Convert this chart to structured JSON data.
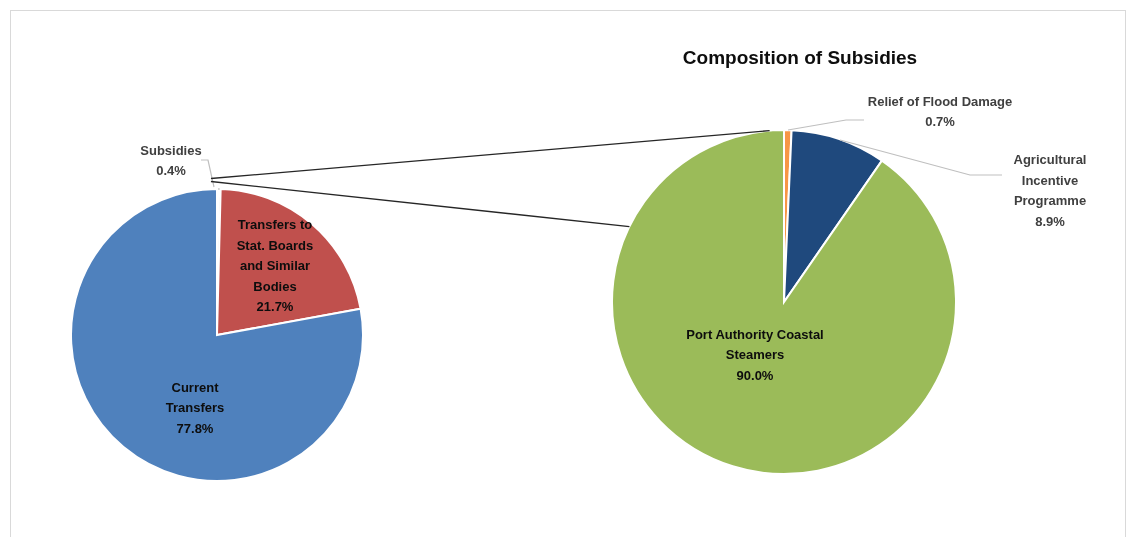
{
  "chart_data": [
    {
      "type": "pie",
      "categories": [
        "Subsidies",
        "Transfers to Stat. Boards and Similar Bodies",
        "Current Transfers"
      ],
      "values": [
        0.4,
        21.7,
        77.8
      ],
      "value_labels": [
        "0.4%",
        "21.7%",
        "77.8%"
      ],
      "colors": [
        "#ffffff",
        "#c0504d",
        "#4f81bd"
      ]
    },
    {
      "type": "pie",
      "title": "Composition of Subsidies",
      "categories": [
        "Relief of Flood Damage",
        "Agricultural Incentive Programme",
        "Port Authority Coastal Steamers"
      ],
      "values": [
        0.7,
        8.9,
        90.0
      ],
      "value_labels": [
        "0.7%",
        "8.9%",
        "90.0%"
      ],
      "colors": [
        "#f79646",
        "#1f497d",
        "#9bbb59"
      ]
    }
  ]
}
